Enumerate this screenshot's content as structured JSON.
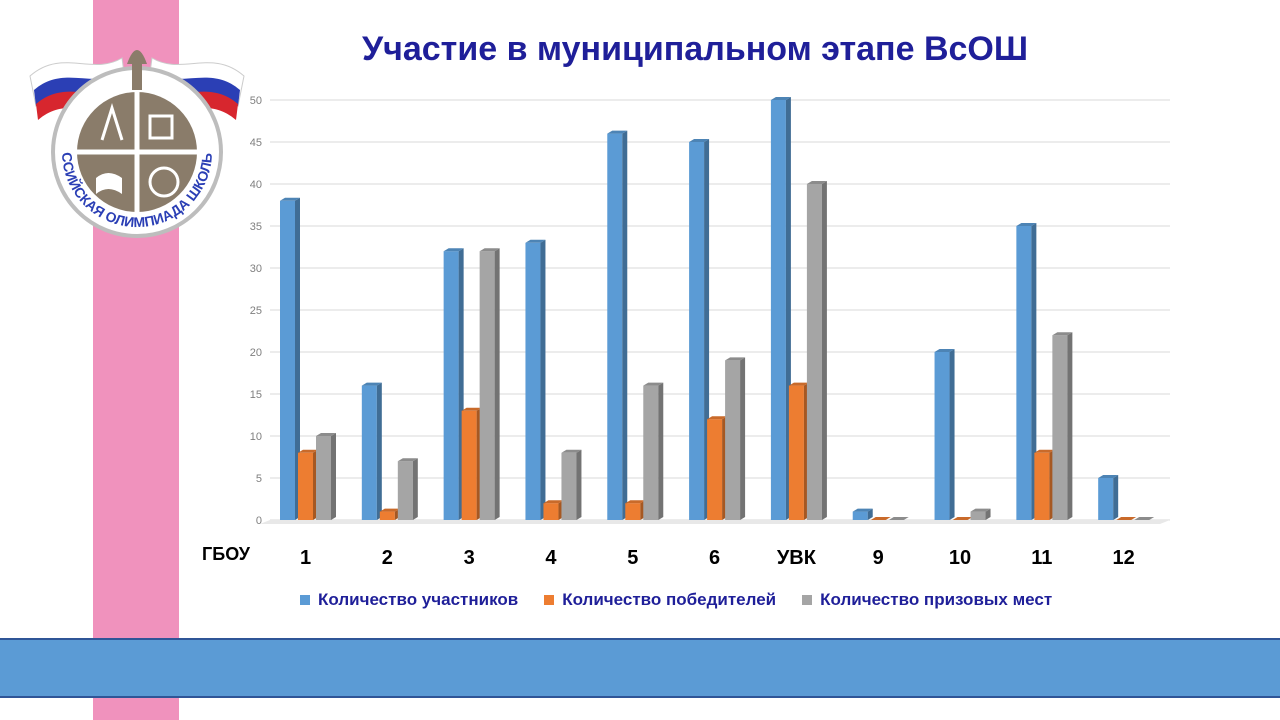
{
  "title": "Участие в муниципальном этапе ВсОШ",
  "logo": {
    "text": "ВСЕРОССИЙСКАЯ ОЛИМПИАДА ШКОЛЬНИКОВ"
  },
  "colors": {
    "pink_strip": "#f092bd",
    "band": "#5b9bd5",
    "title": "#1f1f99"
  },
  "chart_data": {
    "type": "bar",
    "x_prefix_label": "ГБОУ",
    "categories": [
      "1",
      "2",
      "3",
      "4",
      "5",
      "6",
      "УВК",
      "9",
      "10",
      "11",
      "12"
    ],
    "series": [
      {
        "name": "Количество участников",
        "color": "#5b9bd5",
        "values": [
          38,
          16,
          32,
          33,
          46,
          45,
          50,
          1,
          20,
          35,
          5
        ]
      },
      {
        "name": "Количество победителей",
        "color": "#ed7d31",
        "values": [
          8,
          1,
          13,
          2,
          2,
          12,
          16,
          0,
          0,
          8,
          0
        ]
      },
      {
        "name": "Количество призовых мест",
        "color": "#a5a5a5",
        "values": [
          10,
          7,
          32,
          8,
          16,
          19,
          40,
          0,
          1,
          22,
          0
        ]
      }
    ],
    "ylim": [
      0,
      50
    ],
    "yticks": [
      "0",
      "5",
      "10",
      "15",
      "20",
      "25",
      "30",
      "35",
      "40",
      "45",
      "50"
    ],
    "grid": true,
    "legend_position": "bottom"
  }
}
